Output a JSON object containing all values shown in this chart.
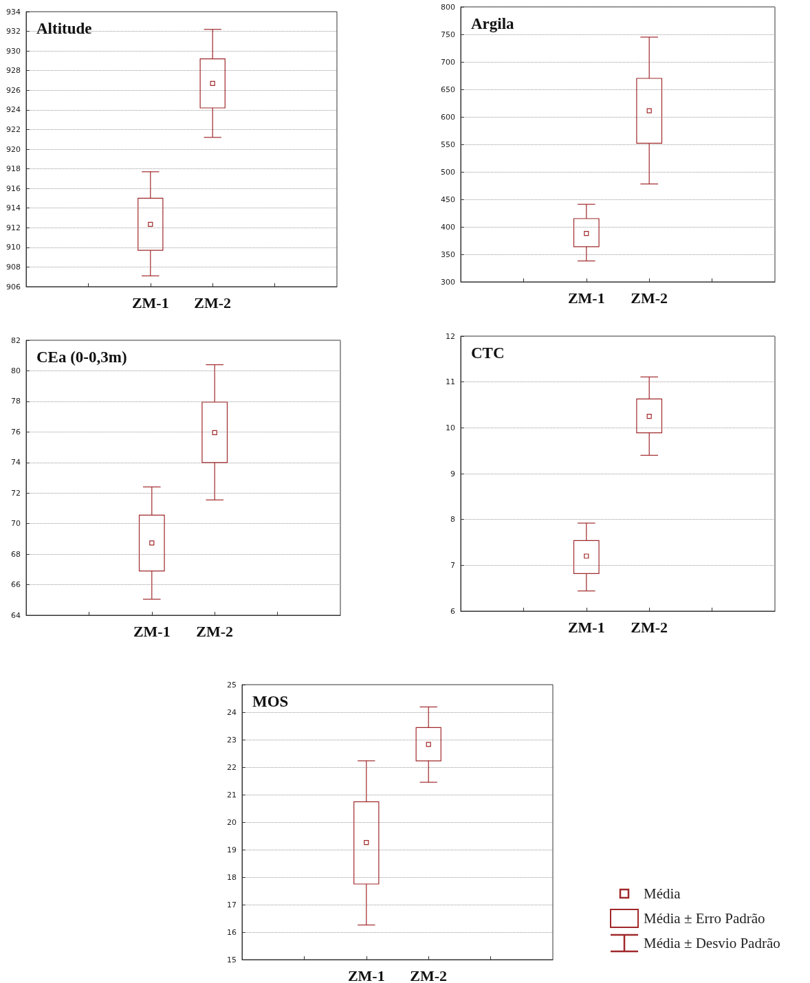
{
  "chart_data": [
    {
      "type": "box",
      "title": "Altitude",
      "categories": [
        "ZM-1",
        "ZM-2"
      ],
      "color": "#a0282a",
      "marker": "square",
      "grid": "y",
      "ylim": [
        906,
        934
      ],
      "yticks": [
        906,
        908,
        910,
        912,
        914,
        916,
        918,
        920,
        922,
        924,
        926,
        928,
        930,
        932,
        934
      ],
      "boxes": [
        {
          "low": 907.1,
          "q1": 909.7,
          "q3": 915.0,
          "high": 917.7,
          "mean": 912.35
        },
        {
          "low": 921.2,
          "q1": 924.2,
          "q3": 929.2,
          "high": 932.2,
          "mean": 926.7
        }
      ]
    },
    {
      "type": "box",
      "title": "Argila",
      "categories": [
        "ZM-1",
        "ZM-2"
      ],
      "color": "#a0282a",
      "marker": "square",
      "grid": "y",
      "ylim": [
        300,
        800
      ],
      "yticks": [
        300,
        350,
        400,
        450,
        500,
        550,
        600,
        650,
        700,
        750,
        800
      ],
      "boxes": [
        {
          "low": 338,
          "q1": 364,
          "q3": 415,
          "high": 441,
          "mean": 388
        },
        {
          "low": 478,
          "q1": 552,
          "q3": 670,
          "high": 745,
          "mean": 611
        }
      ]
    },
    {
      "type": "box",
      "title": "CEa (0-0,3m)",
      "categories": [
        "ZM-1",
        "ZM-2"
      ],
      "color": "#a0282a",
      "marker": "square",
      "grid": "y",
      "ylim": [
        64,
        82
      ],
      "yticks": [
        64,
        66,
        68,
        70,
        72,
        74,
        76,
        78,
        80,
        82
      ],
      "boxes": [
        {
          "low": 65.05,
          "q1": 66.9,
          "q3": 70.55,
          "high": 72.4,
          "mean": 68.73
        },
        {
          "low": 71.55,
          "q1": 74.0,
          "q3": 77.95,
          "high": 80.4,
          "mean": 75.95
        }
      ]
    },
    {
      "type": "box",
      "title": "CTC",
      "categories": [
        "ZM-1",
        "ZM-2"
      ],
      "color": "#a0282a",
      "marker": "square",
      "grid": "y",
      "ylim": [
        6,
        12
      ],
      "yticks": [
        6,
        7,
        8,
        9,
        10,
        11,
        12
      ],
      "boxes": [
        {
          "low": 6.44,
          "q1": 6.82,
          "q3": 7.54,
          "high": 7.92,
          "mean": 7.2
        },
        {
          "low": 9.4,
          "q1": 9.89,
          "q3": 10.63,
          "high": 11.11,
          "mean": 10.25
        }
      ]
    },
    {
      "type": "box",
      "title": "MOS",
      "categories": [
        "ZM-1",
        "ZM-2"
      ],
      "color": "#a0282a",
      "marker": "square",
      "grid": "y",
      "ylim": [
        15,
        25
      ],
      "yticks": [
        15,
        16,
        17,
        18,
        19,
        20,
        21,
        22,
        23,
        24,
        25
      ],
      "boxes": [
        {
          "low": 16.26,
          "q1": 17.75,
          "q3": 20.74,
          "high": 22.23,
          "mean": 19.26
        },
        {
          "low": 21.45,
          "q1": 22.23,
          "q3": 23.44,
          "high": 24.19,
          "mean": 22.83
        }
      ],
      "annotations": [
        "Média",
        "Média ± Erro Padrão",
        "Média ± Desvio Padrão"
      ]
    }
  ]
}
